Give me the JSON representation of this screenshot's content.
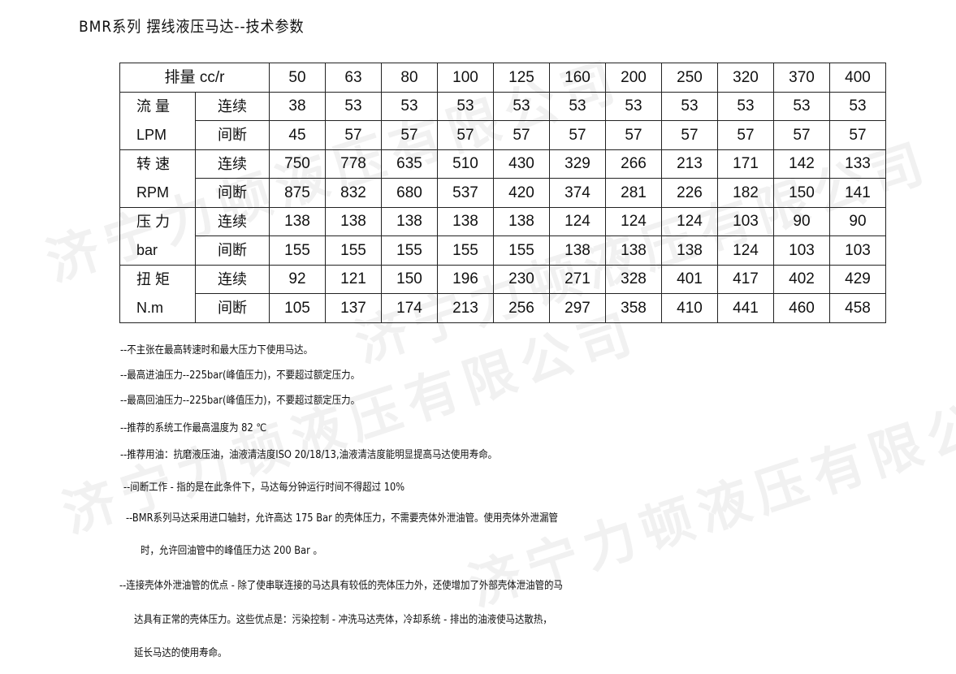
{
  "title": "BMR系列 摆线液压马达--技术参数",
  "watermark": "济宁力顿液压有限公司",
  "table": {
    "header_label": "排量 cc/r",
    "displacements": [
      "50",
      "63",
      "80",
      "100",
      "125",
      "160",
      "200",
      "250",
      "320",
      "370",
      "400"
    ],
    "groups": [
      {
        "name": "流 量",
        "unit": "LPM",
        "rows": [
          {
            "label": "连续",
            "values": [
              "38",
              "53",
              "53",
              "53",
              "53",
              "53",
              "53",
              "53",
              "53",
              "53",
              "53"
            ]
          },
          {
            "label": "间断",
            "values": [
              "45",
              "57",
              "57",
              "57",
              "57",
              "57",
              "57",
              "57",
              "57",
              "57",
              "57"
            ]
          }
        ]
      },
      {
        "name": "转 速",
        "unit": "RPM",
        "rows": [
          {
            "label": "连续",
            "values": [
              "750",
              "778",
              "635",
              "510",
              "430",
              "329",
              "266",
              "213",
              "171",
              "142",
              "133"
            ]
          },
          {
            "label": "间断",
            "values": [
              "875",
              "832",
              "680",
              "537",
              "420",
              "374",
              "281",
              "226",
              "182",
              "150",
              "141"
            ]
          }
        ]
      },
      {
        "name": "压 力",
        "unit": "bar",
        "rows": [
          {
            "label": "连续",
            "values": [
              "138",
              "138",
              "138",
              "138",
              "138",
              "124",
              "124",
              "124",
              "103",
              "90",
              "90"
            ]
          },
          {
            "label": "间断",
            "values": [
              "155",
              "155",
              "155",
              "155",
              "155",
              "138",
              "138",
              "138",
              "124",
              "103",
              "103"
            ]
          }
        ]
      },
      {
        "name": "扭 矩",
        "unit": "N.m",
        "rows": [
          {
            "label": "连续",
            "values": [
              "92",
              "121",
              "150",
              "196",
              "230",
              "271",
              "328",
              "401",
              "417",
              "402",
              "429"
            ]
          },
          {
            "label": "间断",
            "values": [
              "105",
              "137",
              "174",
              "213",
              "256",
              "297",
              "358",
              "410",
              "441",
              "460",
              "458"
            ]
          }
        ]
      }
    ]
  },
  "notes": [
    "--不主张在最高转速时和最大压力下使用马达。",
    "--最高进油压力--225bar(峰值压力)，不要超过额定压力。",
    "--最高回油压力--225bar(峰值压力)，不要超过额定压力。",
    "--推荐的系统工作最高温度为 82 ℃",
    "--推荐用油：抗磨液压油，油液清洁度ISO 20/18/13,油液清洁度能明显提高马达使用寿命。",
    "--间断工作 - 指的是在此条件下，马达每分钟运行时间不得超过 10%",
    "--BMR系列马达采用进口轴封，允许高达 175 Bar 的壳体压力，不需要壳体外泄油管。使用壳体外泄漏管",
    "时，允许回油管中的峰值压力达 200 Bar 。",
    "--连接壳体外泄油管的优点 - 除了使串联连接的马达具有较低的壳体压力外，还使增加了外部壳体泄油管的马",
    "达具有正常的壳体压力。这些优点是：污染控制 - 冲洗马达壳体，冷却系统 - 排出的油液使马达散热，",
    "延长马达的使用寿命。"
  ]
}
